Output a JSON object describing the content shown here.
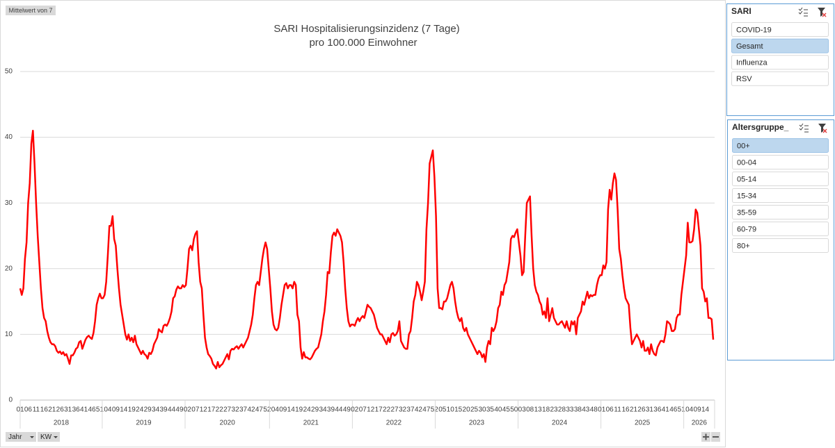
{
  "chart_data": {
    "type": "line",
    "title": "SARI Hospitalisierungsinzidenz (7 Tage)",
    "subtitle": "pro 100.000 Einwohner",
    "color": "#ff0000",
    "ylim": [
      0,
      50
    ],
    "yticks": [
      0,
      10,
      20,
      30,
      40,
      50
    ],
    "grid": true,
    "groups": [
      {
        "label": "2018",
        "categories": [
          "01",
          null,
          null,
          null,
          null,
          "06",
          null,
          null,
          null,
          null,
          "11",
          null,
          null,
          null,
          null,
          "16",
          null,
          null,
          null,
          null,
          "21",
          null,
          null,
          null,
          null,
          "26",
          null,
          null,
          null,
          null,
          "31",
          null,
          null,
          null,
          null,
          "36",
          null,
          null,
          null,
          null,
          "41",
          null,
          null,
          null,
          null,
          "46",
          null,
          null,
          null,
          null,
          "51",
          null
        ],
        "values": [
          17,
          16,
          17,
          21.5,
          24,
          30,
          33,
          39,
          41,
          36,
          30,
          25,
          21,
          17,
          14,
          12.5,
          12,
          10.5,
          9.5,
          8.8,
          8.5,
          8.5,
          8.2,
          7.5,
          7.2,
          7.4,
          7,
          7.3,
          6.8,
          7,
          6.3,
          5.5,
          6.8,
          6.8,
          7.2,
          7.8,
          8,
          8.8,
          9,
          7.8,
          8.5,
          9.2,
          9.6,
          9.8,
          9.5,
          9.3,
          10.2,
          12,
          14.5,
          15.5,
          16.2,
          15.5
        ]
      },
      {
        "label": "2019",
        "categories": [
          null,
          null,
          null,
          "04",
          null,
          null,
          null,
          null,
          "09",
          null,
          null,
          null,
          null,
          "14",
          null,
          null,
          null,
          null,
          "19",
          null,
          null,
          null,
          null,
          "24",
          null,
          null,
          null,
          null,
          "29",
          null,
          null,
          null,
          null,
          "34",
          null,
          null,
          null,
          null,
          "39",
          null,
          null,
          null,
          null,
          "44",
          null,
          null,
          null,
          null,
          "49",
          null,
          null,
          null
        ],
        "values": [
          15.5,
          16,
          18,
          22,
          26.5,
          26.5,
          28,
          24.5,
          23.5,
          20,
          17,
          14.5,
          13,
          11.5,
          10,
          9.2,
          10,
          9,
          9.5,
          8.8,
          9.8,
          8.5,
          8,
          7.5,
          7,
          7.5,
          7,
          6.8,
          6.3,
          7.2,
          7,
          7.5,
          8.5,
          9,
          9.5,
          10.8,
          10.5,
          10.3,
          11.3,
          11.5,
          11.3,
          11.8,
          12.5,
          13.5,
          15.5,
          15.8,
          16.8,
          17.3,
          17,
          17,
          17.5,
          17.2
        ]
      },
      {
        "label": "2020",
        "categories": [
          null,
          "02",
          null,
          null,
          null,
          null,
          "07",
          null,
          null,
          null,
          null,
          "12",
          null,
          null,
          null,
          null,
          "17",
          null,
          null,
          null,
          null,
          "22",
          null,
          null,
          null,
          null,
          "27",
          null,
          null,
          null,
          null,
          "32",
          null,
          null,
          null,
          null,
          "37",
          null,
          null,
          null,
          null,
          "42",
          null,
          null,
          null,
          null,
          "47",
          null,
          null,
          null,
          null,
          "52",
          null
        ],
        "values": [
          17.5,
          20,
          23,
          23.5,
          22.8,
          24.5,
          25.3,
          25.7,
          21,
          18,
          17,
          13,
          9.5,
          8,
          7,
          6.7,
          6.3,
          5.5,
          5.2,
          4.8,
          5.8,
          5,
          5.3,
          5.5,
          6,
          6.5,
          7,
          6.2,
          7.5,
          7.8,
          7.7,
          8,
          8.2,
          7.8,
          8.2,
          8.5,
          8,
          8.5,
          9,
          9.5,
          10.5,
          11.5,
          13,
          15.5,
          17.5,
          18,
          17.5,
          19.5,
          21.5,
          23,
          24,
          23,
          20
        ]
      },
      {
        "label": "2021",
        "categories": [
          null,
          null,
          null,
          "04",
          null,
          null,
          null,
          null,
          "09",
          null,
          null,
          null,
          null,
          "14",
          null,
          null,
          null,
          null,
          "19",
          null,
          null,
          null,
          null,
          "24",
          null,
          null,
          null,
          null,
          "29",
          null,
          null,
          null,
          null,
          "34",
          null,
          null,
          null,
          null,
          "39",
          null,
          null,
          null,
          null,
          "44",
          null,
          null,
          null,
          null,
          "49",
          null,
          null,
          null
        ],
        "values": [
          17,
          13.5,
          11.5,
          10.8,
          10.6,
          11,
          12.5,
          14.5,
          16,
          17.5,
          17.8,
          17,
          17.5,
          17.5,
          17,
          18,
          17.5,
          13,
          12,
          8,
          6.3,
          7.3,
          6.5,
          6.5,
          6.3,
          6.2,
          6.5,
          7,
          7.5,
          7.8,
          8,
          9,
          10,
          12,
          13.5,
          16,
          19.5,
          19.3,
          22.5,
          25,
          25.5,
          25,
          26,
          25.5,
          25,
          24,
          21,
          17,
          14,
          12,
          11.2,
          11.5
        ]
      },
      {
        "label": "2022",
        "categories": [
          null,
          "02",
          null,
          null,
          null,
          null,
          "07",
          null,
          null,
          null,
          null,
          "12",
          null,
          null,
          null,
          null,
          "17",
          null,
          null,
          null,
          null,
          "22",
          null,
          null,
          null,
          null,
          "27",
          null,
          null,
          null,
          null,
          "32",
          null,
          null,
          null,
          null,
          "37",
          null,
          null,
          null,
          null,
          "42",
          null,
          null,
          null,
          null,
          "47",
          null,
          null,
          null,
          null,
          "52"
        ],
        "values": [
          11.5,
          11.3,
          12,
          12.5,
          12,
          12.5,
          12.8,
          12.5,
          13.5,
          14.5,
          14.2,
          14,
          13.5,
          13,
          12,
          11,
          10.5,
          10,
          10,
          9.5,
          9,
          8.5,
          9.5,
          8.8,
          10,
          10.2,
          9.8,
          10,
          10.5,
          12,
          9,
          8.5,
          8,
          7.8,
          7.8,
          10,
          10.5,
          12.5,
          15,
          16,
          18,
          17.5,
          16.5,
          15.2,
          16.5,
          18,
          26,
          30,
          36,
          37,
          38,
          34
        ]
      },
      {
        "label": "2023",
        "categories": [
          null,
          null,
          null,
          null,
          "05",
          null,
          null,
          null,
          null,
          "10",
          null,
          null,
          null,
          null,
          "15",
          null,
          null,
          null,
          null,
          "20",
          null,
          null,
          null,
          null,
          "25",
          null,
          null,
          null,
          null,
          "30",
          null,
          null,
          null,
          null,
          "35",
          null,
          null,
          null,
          null,
          "40",
          null,
          null,
          null,
          null,
          "45",
          null,
          null,
          null,
          null,
          "50",
          null,
          null
        ],
        "values": [
          28,
          17,
          14,
          14,
          13.8,
          15,
          15,
          15.5,
          16.5,
          17.5,
          18,
          17,
          15,
          13.5,
          12.5,
          12,
          12.5,
          11,
          10.5,
          11,
          10,
          9.5,
          9,
          8.5,
          8,
          7.5,
          7,
          7.5,
          7.2,
          6.5,
          7,
          5.8,
          8,
          9,
          8.5,
          11,
          10.5,
          11,
          12,
          14,
          14.5,
          16.5,
          16,
          17.5,
          18,
          19.5,
          21,
          24.5,
          25,
          24.8,
          25.5,
          26
        ]
      },
      {
        "label": "2024",
        "categories": [
          null,
          null,
          "03",
          null,
          null,
          null,
          null,
          "08",
          null,
          null,
          null,
          null,
          "13",
          null,
          null,
          null,
          null,
          "18",
          null,
          null,
          null,
          null,
          "23",
          null,
          null,
          null,
          null,
          "28",
          null,
          null,
          null,
          null,
          "33",
          null,
          null,
          null,
          null,
          "38",
          null,
          null,
          null,
          null,
          "43",
          null,
          null,
          null,
          null,
          "48",
          null,
          null,
          null,
          null
        ],
        "values": [
          24,
          22,
          19,
          19.5,
          25,
          30,
          30.5,
          31,
          25,
          20,
          17.5,
          16.5,
          16,
          15,
          14.5,
          13,
          13.5,
          12.5,
          15.5,
          12,
          13,
          14,
          12.5,
          12,
          11.5,
          11.5,
          11.8,
          12,
          11.5,
          11,
          12,
          11,
          10.5,
          12,
          11.5,
          12,
          10,
          12.5,
          13,
          13.5,
          15,
          14.5,
          15.5,
          16.5,
          15.5,
          16,
          15.8,
          16,
          16,
          17.5,
          18.5,
          19
        ]
      },
      {
        "label": "2025",
        "categories": [
          "01",
          null,
          null,
          null,
          null,
          "06",
          null,
          null,
          null,
          null,
          "11",
          null,
          null,
          null,
          null,
          "16",
          null,
          null,
          null,
          null,
          "21",
          null,
          null,
          null,
          null,
          "26",
          null,
          null,
          null,
          null,
          "31",
          null,
          null,
          null,
          null,
          "36",
          null,
          null,
          null,
          null,
          "41",
          null,
          null,
          null,
          null,
          "46",
          null,
          null,
          null,
          null,
          "51",
          null
        ],
        "values": [
          19,
          20.5,
          20,
          21,
          29,
          32,
          30.5,
          33,
          34.5,
          33.5,
          29,
          23,
          21.5,
          19,
          17,
          15.5,
          15,
          14.5,
          11,
          8.5,
          9,
          9.5,
          10,
          9.5,
          9,
          8,
          9,
          7.5,
          7.5,
          8,
          7,
          8.5,
          7.5,
          7,
          6.8,
          8,
          8.5,
          9,
          9,
          8.8,
          10,
          12,
          11.8,
          11.5,
          10.5,
          10.5,
          10.8,
          12.5,
          13,
          13,
          16,
          18
        ]
      },
      {
        "label": "2026",
        "categories": [
          null,
          null,
          null,
          "04",
          null,
          null,
          null,
          null,
          "09",
          null,
          null,
          null,
          null,
          "14",
          null,
          null,
          null,
          null,
          null
        ],
        "values": [
          20,
          22,
          27,
          24,
          24,
          24.2,
          26,
          29,
          28.5,
          26,
          23.5,
          17,
          16.5,
          15,
          15.5,
          12.5,
          12.5,
          12.3,
          9.2
        ]
      }
    ]
  },
  "value_button": "Mittelwert von 7",
  "field_buttons": [
    "Jahr",
    "KW"
  ],
  "slicers": [
    {
      "title": "SARI",
      "items": [
        {
          "label": "COVID-19",
          "selected": false
        },
        {
          "label": "Gesamt",
          "selected": true
        },
        {
          "label": "Influenza",
          "selected": false
        },
        {
          "label": "RSV",
          "selected": false
        }
      ]
    },
    {
      "title": "Altersgruppe_",
      "items": [
        {
          "label": "00+",
          "selected": true
        },
        {
          "label": "00-04",
          "selected": false
        },
        {
          "label": "05-14",
          "selected": false
        },
        {
          "label": "15-34",
          "selected": false
        },
        {
          "label": "35-59",
          "selected": false
        },
        {
          "label": "60-79",
          "selected": false
        },
        {
          "label": "80+",
          "selected": false
        }
      ]
    }
  ]
}
